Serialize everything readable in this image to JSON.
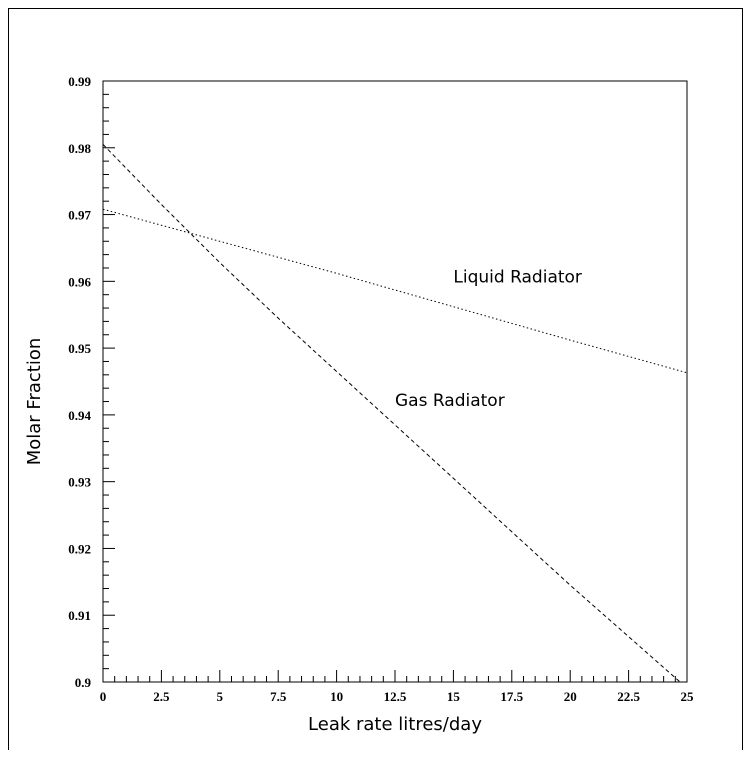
{
  "chart_data": {
    "type": "line",
    "title": "",
    "xlabel": "Leak rate litres/day",
    "ylabel": "Molar Fraction",
    "xlim": [
      0,
      25
    ],
    "ylim": [
      0.9,
      0.99
    ],
    "grid": false,
    "legend": "none",
    "x_ticks": [
      "0",
      "2.5",
      "5",
      "7.5",
      "10",
      "12.5",
      "15",
      "17.5",
      "20",
      "22.5",
      "25"
    ],
    "y_ticks": [
      "0.9",
      "0.91",
      "0.92",
      "0.93",
      "0.94",
      "0.95",
      "0.96",
      "0.97",
      "0.98",
      "0.99"
    ],
    "series": [
      {
        "name": "Gas Radiator",
        "style": "dashed",
        "x": [
          0,
          2.5,
          5,
          7.5,
          10,
          12.5,
          15,
          17.5,
          20,
          22.5,
          24.7
        ],
        "y": [
          0.9805,
          0.9715,
          0.9628,
          0.9545,
          0.9465,
          0.9385,
          0.9305,
          0.9225,
          0.9145,
          0.9068,
          0.9
        ]
      },
      {
        "name": "Liquid Radiator",
        "style": "dotted",
        "x": [
          0,
          5,
          10,
          15,
          20,
          25
        ],
        "y": [
          0.9708,
          0.966,
          0.9612,
          0.9562,
          0.9512,
          0.9463
        ]
      }
    ]
  }
}
